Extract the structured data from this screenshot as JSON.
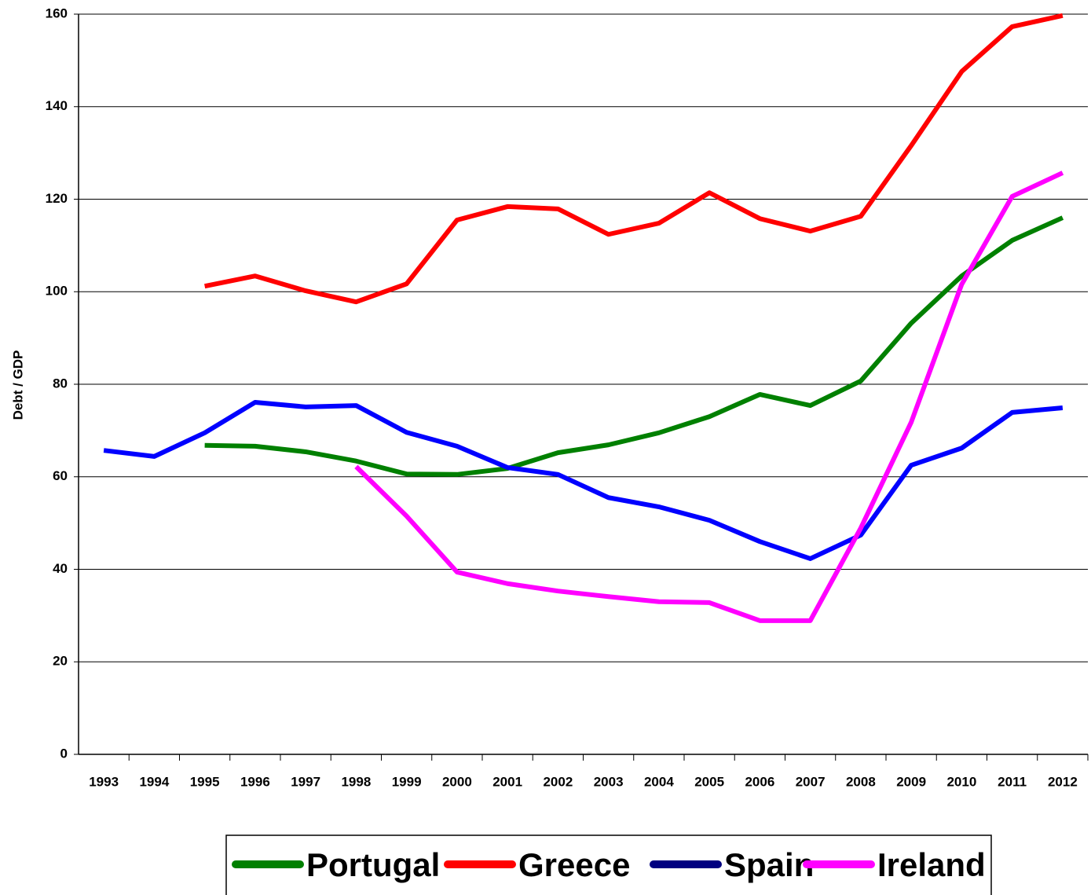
{
  "chart_data": {
    "type": "line",
    "y_label": "Debt / GDP",
    "categories": [
      "1993",
      "1994",
      "1995",
      "1996",
      "1997",
      "1998",
      "1999",
      "2000",
      "2001",
      "2002",
      "2003",
      "2004",
      "2005",
      "2006",
      "2007",
      "2008",
      "2009",
      "2010",
      "2011",
      "2012"
    ],
    "series": [
      {
        "name": "Portugal",
        "color": "#008000",
        "values": [
          null,
          null,
          66.8,
          66.6,
          65.4,
          63.4,
          60.6,
          60.5,
          61.8,
          65.2,
          66.9,
          69.5,
          73.0,
          77.8,
          75.4,
          80.7,
          93.2,
          103.4,
          111.1,
          116.0
        ]
      },
      {
        "name": "Greece",
        "color": "#ff0000",
        "values": [
          null,
          null,
          101.2,
          103.4,
          100.2,
          97.8,
          101.7,
          115.5,
          118.4,
          117.9,
          112.4,
          114.8,
          121.4,
          115.8,
          113.1,
          116.3,
          131.6,
          147.6,
          157.3,
          159.7
        ]
      },
      {
        "name": "Spain",
        "color": "#0000ff",
        "values": [
          65.7,
          64.4,
          69.5,
          76.1,
          75.1,
          75.4,
          69.6,
          66.6,
          62.0,
          60.5,
          55.5,
          53.5,
          50.6,
          46.0,
          42.3,
          47.4,
          62.5,
          66.2,
          73.9,
          74.9
        ]
      },
      {
        "name": "Ireland",
        "color": "#ff00ff",
        "values": [
          null,
          null,
          null,
          null,
          null,
          62.2,
          51.5,
          39.4,
          36.9,
          35.3,
          34.1,
          33.0,
          32.8,
          28.9,
          28.9,
          48.9,
          71.8,
          101.6,
          120.6,
          125.7
        ]
      }
    ],
    "legend_colors": [
      "#008000",
      "#ff0000",
      "#000080",
      "#ff00ff"
    ],
    "ylim": [
      0,
      160
    ],
    "yticks": [
      0,
      20,
      40,
      60,
      80,
      100,
      120,
      140,
      160
    ],
    "grid": true,
    "legend": "bottom"
  }
}
